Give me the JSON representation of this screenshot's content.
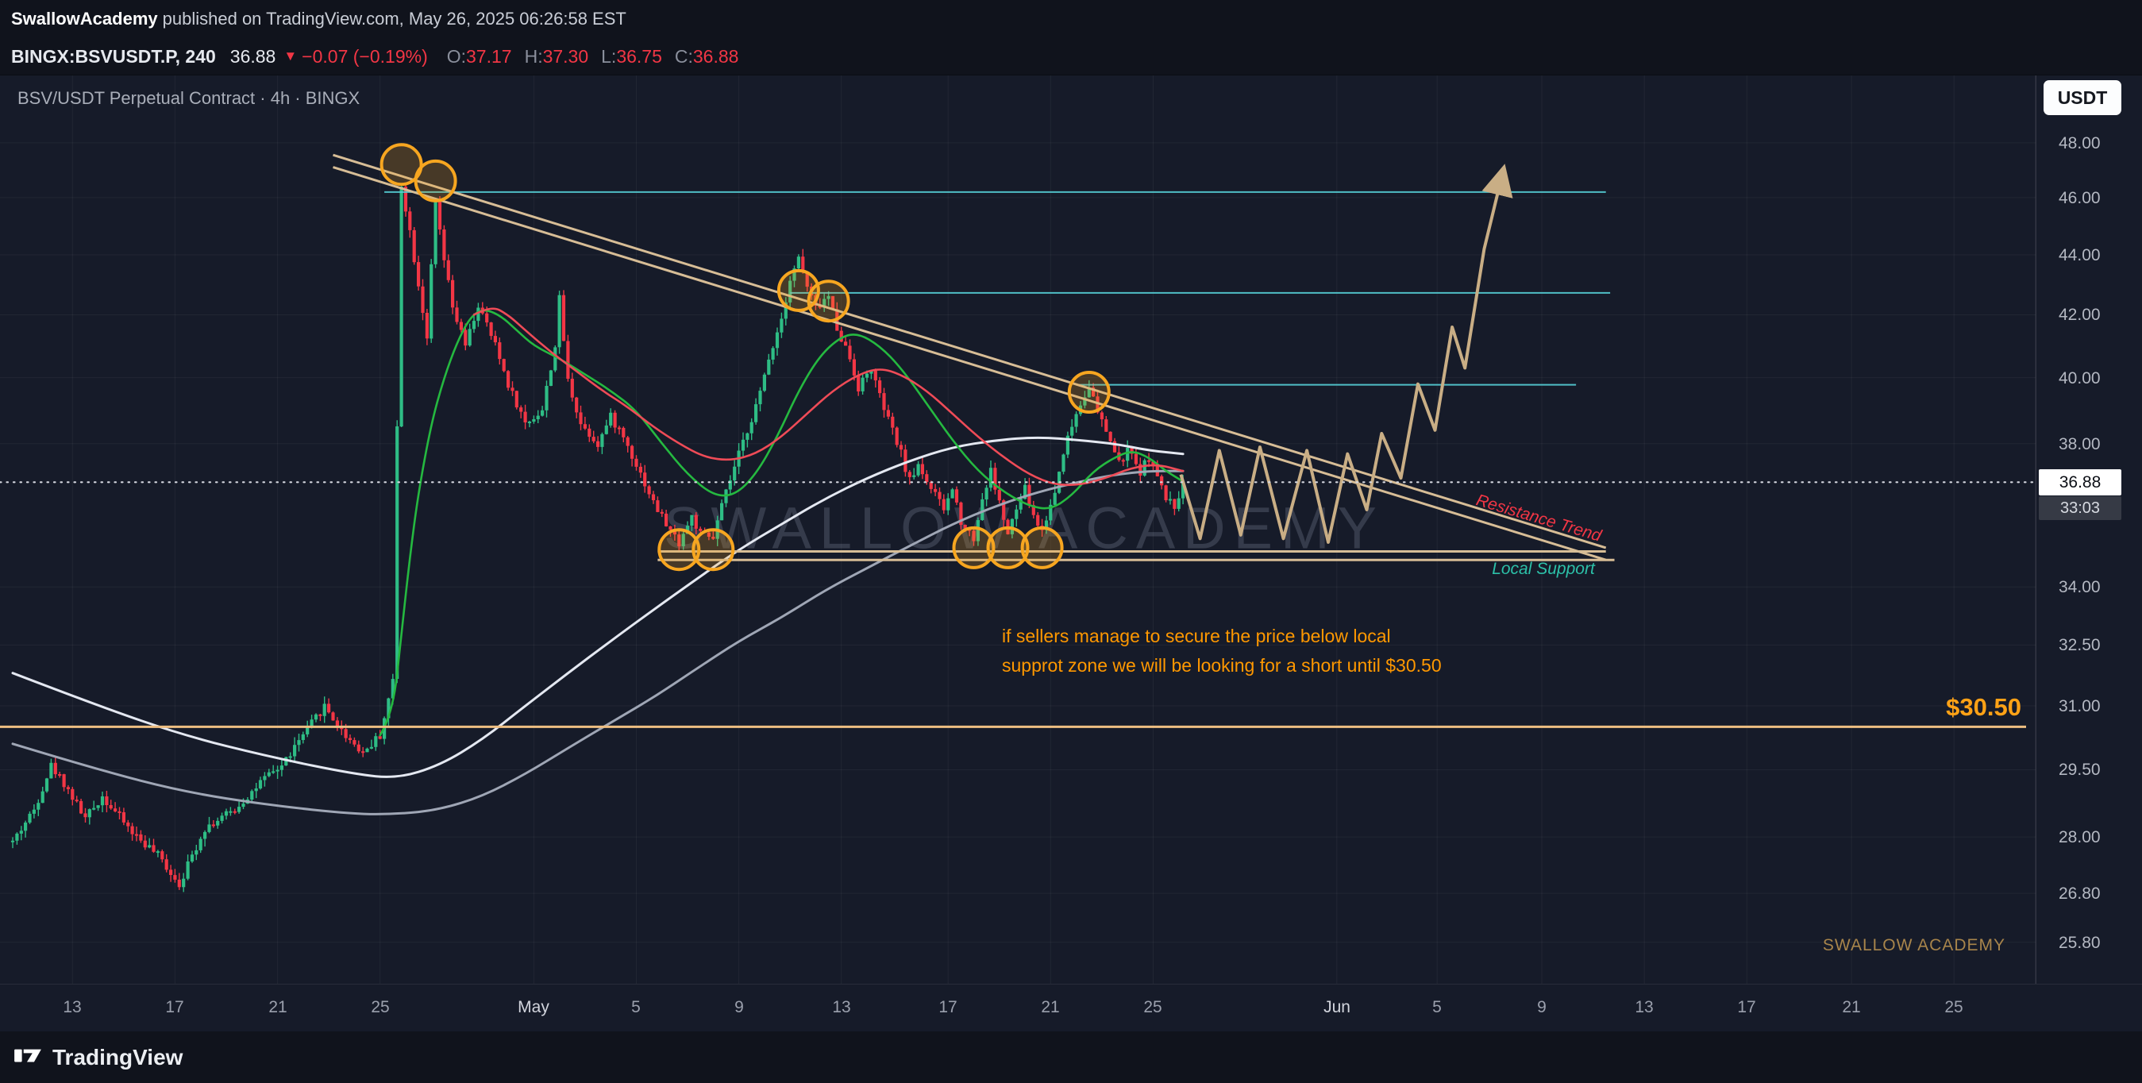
{
  "header": {
    "publisher": "SwallowAcademy",
    "publish_info": "published on TradingView.com, May 26, 2025 06:26:58 EST",
    "symbol_line": {
      "symbol": "BINGX:BSVUSDT.P, 240",
      "last_price": "36.88",
      "direction_icon": "▼",
      "change": "−0.07 (−0.19%)",
      "ohlc": [
        {
          "label": "O:",
          "value": "37.17"
        },
        {
          "label": "H:",
          "value": "37.30"
        },
        {
          "label": "L:",
          "value": "36.75"
        },
        {
          "label": "C:",
          "value": "36.88"
        }
      ]
    }
  },
  "chart": {
    "title": "BSV/USDT Perpetual Contract · 4h · BINGX",
    "currency_badge": "USDT",
    "watermark": "SWALLOW ACADEMY",
    "brand_small": "SWALLOW ACADEMY",
    "annotation": {
      "line1": "if sellers manage to secure the price below local",
      "line2": "supprot zone we will be looking for a short until $30.50"
    },
    "labels": {
      "resistance": "Resistance Trend",
      "support": "Local Support",
      "target": "$30.50"
    },
    "price_axis": {
      "current": "36.88",
      "countdown": "33:03",
      "ticks": [
        {
          "label": "48.00",
          "price": 48
        },
        {
          "label": "46.00",
          "price": 46
        },
        {
          "label": "44.00",
          "price": 44
        },
        {
          "label": "42.00",
          "price": 42
        },
        {
          "label": "40.00",
          "price": 40
        },
        {
          "label": "38.00",
          "price": 38
        },
        {
          "label": "34.00",
          "price": 34
        },
        {
          "label": "32.50",
          "price": 32.5
        },
        {
          "label": "31.00",
          "price": 31
        },
        {
          "label": "29.50",
          "price": 29.5
        },
        {
          "label": "28.00",
          "price": 28
        },
        {
          "label": "26.80",
          "price": 26.8
        },
        {
          "label": "25.80",
          "price": 25.8
        }
      ]
    },
    "time_axis": [
      {
        "label": "13",
        "i": 14
      },
      {
        "label": "17",
        "i": 38
      },
      {
        "label": "21",
        "i": 62
      },
      {
        "label": "25",
        "i": 86
      },
      {
        "label": "May",
        "i": 122,
        "major": true
      },
      {
        "label": "5",
        "i": 146
      },
      {
        "label": "9",
        "i": 170
      },
      {
        "label": "13",
        "i": 194
      },
      {
        "label": "17",
        "i": 219
      },
      {
        "label": "21",
        "i": 243
      },
      {
        "label": "25",
        "i": 267
      },
      {
        "label": "Jun",
        "i": 310,
        "major": true
      },
      {
        "label": "5",
        "i": 333.5
      },
      {
        "label": "9",
        "i": 358
      },
      {
        "label": "13",
        "i": 382
      },
      {
        "label": "17",
        "i": 406
      },
      {
        "label": "21",
        "i": 430.5
      },
      {
        "label": "25",
        "i": 454.5
      }
    ]
  },
  "chart_data": {
    "type": "candlestick",
    "symbol": "BSV/USDT Perpetual Contract",
    "exchange": "BINGX",
    "timeframe": "4h",
    "price_scale": "log",
    "last": {
      "open": 37.17,
      "high": 37.3,
      "low": 36.75,
      "close": 36.88,
      "change": -0.07,
      "change_pct": -0.19
    },
    "y_ticks": [
      48,
      46,
      44,
      42,
      40,
      38,
      34,
      32.5,
      31,
      29.5,
      28,
      26.8,
      25.8
    ],
    "bar_count": 275,
    "price_path_anchors": [
      [
        0,
        27.9
      ],
      [
        5,
        28.6
      ],
      [
        9,
        29.6
      ],
      [
        12,
        29.2
      ],
      [
        17,
        28.4
      ],
      [
        21,
        28.9
      ],
      [
        28,
        28.1
      ],
      [
        34,
        27.6
      ],
      [
        39,
        27.0
      ],
      [
        45,
        28.2
      ],
      [
        52,
        28.6
      ],
      [
        58,
        29.2
      ],
      [
        63,
        29.6
      ],
      [
        68,
        30.3
      ],
      [
        73,
        31.0
      ],
      [
        77,
        30.4
      ],
      [
        82,
        29.9
      ],
      [
        86,
        30.3
      ],
      [
        89,
        31.6
      ],
      [
        90,
        38.5
      ],
      [
        91,
        46.5
      ],
      [
        93,
        44.8
      ],
      [
        95,
        43.0
      ],
      [
        97,
        41.3
      ],
      [
        99,
        45.8
      ],
      [
        101,
        43.8
      ],
      [
        103,
        42.2
      ],
      [
        106,
        41.0
      ],
      [
        109,
        42.3
      ],
      [
        113,
        41.0
      ],
      [
        116,
        39.8
      ],
      [
        120,
        38.6
      ],
      [
        124,
        39.0
      ],
      [
        127,
        41.0
      ],
      [
        128,
        42.5
      ],
      [
        130,
        39.9
      ],
      [
        133,
        38.6
      ],
      [
        137,
        38.0
      ],
      [
        140,
        38.8
      ],
      [
        143,
        38.2
      ],
      [
        146,
        37.4
      ],
      [
        150,
        36.3
      ],
      [
        154,
        35.5
      ],
      [
        156,
        35.2
      ],
      [
        159,
        35.9
      ],
      [
        161,
        35.4
      ],
      [
        164,
        35.3
      ],
      [
        166,
        36.2
      ],
      [
        169,
        37.3
      ],
      [
        172,
        38.4
      ],
      [
        175,
        39.5
      ],
      [
        177,
        40.6
      ],
      [
        180,
        41.9
      ],
      [
        182,
        43.2
      ],
      [
        184,
        43.9
      ],
      [
        186,
        42.9
      ],
      [
        188,
        42.2
      ],
      [
        191,
        42.6
      ],
      [
        193,
        41.6
      ],
      [
        196,
        40.6
      ],
      [
        198,
        39.7
      ],
      [
        201,
        40.3
      ],
      [
        203,
        39.4
      ],
      [
        205,
        38.7
      ],
      [
        208,
        37.7
      ],
      [
        210,
        36.9
      ],
      [
        212,
        37.4
      ],
      [
        215,
        36.7
      ],
      [
        218,
        36.1
      ],
      [
        220,
        36.7
      ],
      [
        222,
        35.8
      ],
      [
        225,
        35.3
      ],
      [
        227,
        36.4
      ],
      [
        229,
        37.2
      ],
      [
        231,
        36.3
      ],
      [
        233,
        35.4
      ],
      [
        235,
        36.1
      ],
      [
        237,
        36.7
      ],
      [
        239,
        35.9
      ],
      [
        241,
        35.5
      ],
      [
        244,
        36.6
      ],
      [
        246,
        37.8
      ],
      [
        249,
        38.9
      ],
      [
        252,
        39.8
      ],
      [
        254,
        38.9
      ],
      [
        257,
        38.1
      ],
      [
        259,
        37.4
      ],
      [
        261,
        37.8
      ],
      [
        264,
        37.2
      ],
      [
        266,
        37.6
      ],
      [
        268,
        37.0
      ],
      [
        270,
        36.4
      ],
      [
        272,
        36.2
      ],
      [
        274,
        36.88
      ]
    ],
    "ma_green": [
      [
        86,
        30.3
      ],
      [
        89,
        30.8
      ],
      [
        91,
        32.8
      ],
      [
        93,
        34.8
      ],
      [
        95,
        36.6
      ],
      [
        98,
        38.6
      ],
      [
        101,
        40.0
      ],
      [
        104,
        41.1
      ],
      [
        107,
        41.9
      ],
      [
        110,
        42.2
      ],
      [
        114,
        42.0
      ],
      [
        118,
        41.5
      ],
      [
        122,
        41.0
      ],
      [
        128,
        40.6
      ],
      [
        134,
        40.1
      ],
      [
        140,
        39.6
      ],
      [
        146,
        39.0
      ],
      [
        152,
        38.0
      ],
      [
        158,
        37.1
      ],
      [
        164,
        36.5
      ],
      [
        169,
        36.5
      ],
      [
        174,
        37.1
      ],
      [
        179,
        38.2
      ],
      [
        184,
        39.6
      ],
      [
        189,
        40.7
      ],
      [
        194,
        41.3
      ],
      [
        198,
        41.4
      ],
      [
        203,
        41.0
      ],
      [
        208,
        40.3
      ],
      [
        214,
        39.2
      ],
      [
        220,
        38.1
      ],
      [
        226,
        37.2
      ],
      [
        232,
        36.6
      ],
      [
        238,
        36.2
      ],
      [
        243,
        36.1
      ],
      [
        248,
        36.5
      ],
      [
        253,
        37.2
      ],
      [
        258,
        37.6
      ],
      [
        262,
        37.8
      ],
      [
        266,
        37.6
      ],
      [
        270,
        37.2
      ],
      [
        274,
        36.9
      ]
    ],
    "ma_red": [
      [
        108,
        42.0
      ],
      [
        112,
        42.3
      ],
      [
        116,
        42.0
      ],
      [
        120,
        41.5
      ],
      [
        126,
        40.8
      ],
      [
        132,
        40.2
      ],
      [
        138,
        39.6
      ],
      [
        144,
        39.1
      ],
      [
        150,
        38.5
      ],
      [
        156,
        38.0
      ],
      [
        162,
        37.6
      ],
      [
        168,
        37.5
      ],
      [
        174,
        37.7
      ],
      [
        180,
        38.2
      ],
      [
        186,
        38.9
      ],
      [
        192,
        39.6
      ],
      [
        198,
        40.1
      ],
      [
        203,
        40.3
      ],
      [
        208,
        40.1
      ],
      [
        214,
        39.6
      ],
      [
        220,
        38.9
      ],
      [
        226,
        38.2
      ],
      [
        232,
        37.6
      ],
      [
        238,
        37.1
      ],
      [
        244,
        36.8
      ],
      [
        250,
        36.8
      ],
      [
        256,
        37.0
      ],
      [
        262,
        37.3
      ],
      [
        268,
        37.4
      ],
      [
        274,
        37.2
      ]
    ],
    "ma_white_fast": [
      [
        0,
        31.8
      ],
      [
        20,
        31.0
      ],
      [
        40,
        30.3
      ],
      [
        60,
        29.8
      ],
      [
        80,
        29.4
      ],
      [
        90,
        29.3
      ],
      [
        100,
        29.6
      ],
      [
        110,
        30.2
      ],
      [
        120,
        31.0
      ],
      [
        130,
        31.8
      ],
      [
        140,
        32.6
      ],
      [
        150,
        33.4
      ],
      [
        160,
        34.2
      ],
      [
        170,
        35.0
      ],
      [
        180,
        35.7
      ],
      [
        190,
        36.4
      ],
      [
        200,
        37.0
      ],
      [
        210,
        37.5
      ],
      [
        220,
        37.9
      ],
      [
        230,
        38.1
      ],
      [
        240,
        38.2
      ],
      [
        250,
        38.1
      ],
      [
        258,
        38.0
      ],
      [
        266,
        37.8
      ],
      [
        274,
        37.7
      ]
    ],
    "ma_white_slow": [
      [
        0,
        30.1
      ],
      [
        20,
        29.5
      ],
      [
        40,
        29.0
      ],
      [
        60,
        28.7
      ],
      [
        80,
        28.5
      ],
      [
        90,
        28.5
      ],
      [
        100,
        28.6
      ],
      [
        110,
        28.9
      ],
      [
        120,
        29.4
      ],
      [
        130,
        30.0
      ],
      [
        140,
        30.6
      ],
      [
        150,
        31.2
      ],
      [
        160,
        31.9
      ],
      [
        170,
        32.6
      ],
      [
        180,
        33.2
      ],
      [
        190,
        33.9
      ],
      [
        200,
        34.5
      ],
      [
        210,
        35.1
      ],
      [
        220,
        35.7
      ],
      [
        230,
        36.2
      ],
      [
        240,
        36.6
      ],
      [
        250,
        36.9
      ],
      [
        258,
        37.1
      ],
      [
        266,
        37.2
      ],
      [
        274,
        37.2
      ]
    ],
    "trendlines": [
      {
        "i1": 75,
        "p1": 47.55,
        "i2": 373,
        "p2": 35.05
      },
      {
        "i1": 75,
        "p1": 47.1,
        "i2": 373,
        "p2": 34.72
      }
    ],
    "support_zone": [
      {
        "price": 34.95,
        "i1": 151,
        "i2": 373
      },
      {
        "price": 34.72,
        "i1": 151,
        "i2": 375
      }
    ],
    "horizontal_rays": [
      {
        "price": 46.2,
        "i1": 87,
        "i2": 373
      },
      {
        "price": 42.72,
        "i1": 182,
        "i2": 374
      },
      {
        "price": 39.78,
        "i1": 249,
        "i2": 366
      }
    ],
    "target_line": {
      "price": 30.5,
      "label": "$30.50"
    },
    "projection": [
      [
        273.5,
        37.1
      ],
      [
        278,
        35.3
      ],
      [
        282.5,
        37.8
      ],
      [
        287.5,
        35.4
      ],
      [
        292,
        37.9
      ],
      [
        297.5,
        35.3
      ],
      [
        303,
        37.8
      ],
      [
        308,
        35.2
      ],
      [
        312.5,
        37.7
      ],
      [
        317,
        36.1
      ],
      [
        320.5,
        38.3
      ],
      [
        325,
        37.0
      ],
      [
        329,
        39.8
      ],
      [
        333,
        38.4
      ],
      [
        337,
        41.6
      ],
      [
        340,
        40.3
      ],
      [
        344.5,
        44.2
      ],
      [
        349,
        47.0
      ]
    ],
    "circles": [
      [
        91,
        47.2
      ],
      [
        99,
        46.6
      ],
      [
        156,
        35.0
      ],
      [
        164,
        35.0
      ],
      [
        184,
        42.8
      ],
      [
        191,
        42.45
      ],
      [
        225,
        35.05
      ],
      [
        233,
        35.05
      ],
      [
        241,
        35.05
      ],
      [
        252,
        39.55
      ]
    ]
  },
  "footer": {
    "brand": "TradingView"
  },
  "colors": {
    "background": "#161b29",
    "panel": "#10131c",
    "up": "#2ebd85",
    "down": "#f23645",
    "ma_green": "#25b940",
    "ma_red": "#ef4b57",
    "ma_fast": "#e4e8f1",
    "ma_slow": "#9fa6b5",
    "trend": "#d7bd96",
    "projection": "#c9ae85",
    "ray": "#56d0d8",
    "support_zone": "#d7bd96",
    "orange": "#ff9800",
    "circle": "#f7a620",
    "target_line": "#edbe82",
    "current_price": "#d5d8e0",
    "label_support": "#2cc0a8",
    "label_resistance": "#f23645"
  }
}
